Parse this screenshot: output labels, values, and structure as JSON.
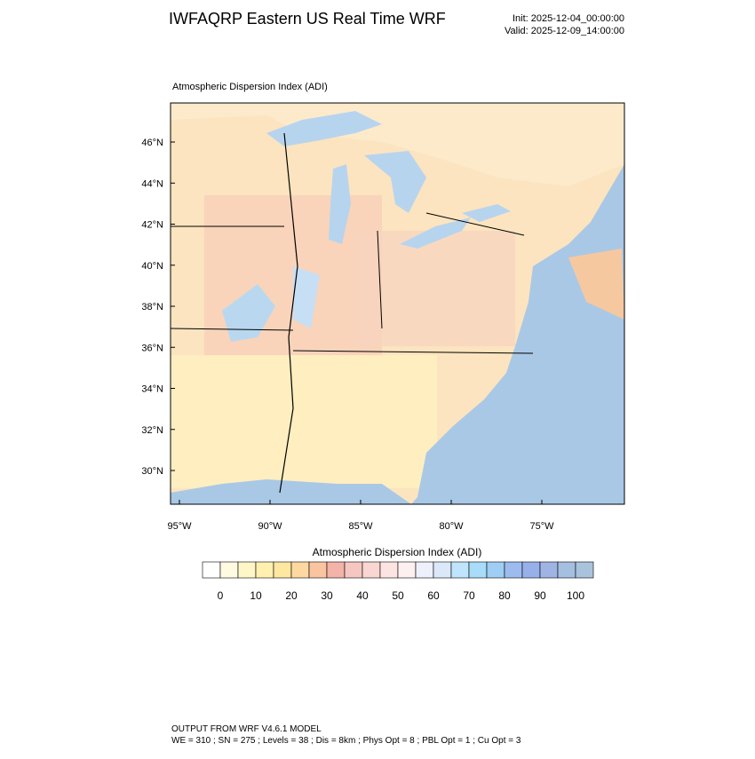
{
  "header": {
    "title": "IWFAQRP Eastern US Real Time WRF",
    "init": "Init: 2025-12-04_00:00:00",
    "valid": "Valid: 2025-12-09_14:00:00"
  },
  "map": {
    "title": "Atmospheric Dispersion Index   (ADI)",
    "lat_labels": [
      "46°N",
      "44°N",
      "42°N",
      "40°N",
      "38°N",
      "36°N",
      "34°N",
      "32°N",
      "30°N"
    ],
    "lon_labels": [
      "95°W",
      "90°W",
      "85°W",
      "80°W",
      "75°W"
    ]
  },
  "colorbar": {
    "title": "Atmospheric Dispersion Index  (ADI)",
    "ticks": [
      0,
      10,
      20,
      30,
      40,
      50,
      60,
      70,
      80,
      90,
      100
    ],
    "colors": [
      "#ffffff",
      "#fffbe0",
      "#fff6c8",
      "#fff0b0",
      "#ffe7a0",
      "#fdd8a0",
      "#f9c4a0",
      "#f4b3a8",
      "#f6c6c0",
      "#f9d6d2",
      "#fbe4e2",
      "#fcf0f0",
      "#eef0fb",
      "#dbe8fa",
      "#bfe4fb",
      "#a8dcf8",
      "#9fcdf3",
      "#9cbcef",
      "#98b0ea",
      "#9fb4e2",
      "#a5bfe0",
      "#a9c3dc"
    ]
  },
  "footer": {
    "line1": "OUTPUT FROM WRF V4.6.1 MODEL",
    "line2": "WE = 310 ; SN = 275 ; Levels = 38 ; Dis = 8km ; Phys Opt = 8 ; PBL Opt = 1 ; Cu Opt = 3"
  }
}
